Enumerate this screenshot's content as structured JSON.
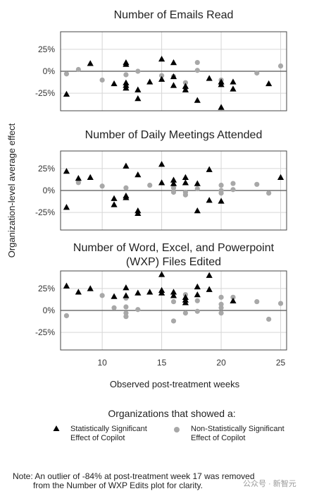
{
  "chart_data": {
    "type": "scatter",
    "xlabel": "Observed post-treatment weeks",
    "ylabel": "Organization-level average effect",
    "x_ticks": [
      10,
      15,
      20,
      25
    ],
    "xlim": [
      6.5,
      25.5
    ],
    "y_ticks": [
      {
        "value": 25,
        "label": "25%"
      },
      {
        "value": 0,
        "label": "0%"
      },
      {
        "value": -25,
        "label": "-25%"
      }
    ],
    "panels": [
      {
        "title_lines": [
          "Number of Emails Read"
        ],
        "ylim": [
          -45,
          45
        ],
        "significant": [
          [
            7,
            -26
          ],
          [
            9,
            9
          ],
          [
            11,
            -14
          ],
          [
            12,
            10
          ],
          [
            12,
            8
          ],
          [
            12,
            -13
          ],
          [
            12,
            -16
          ],
          [
            12,
            -19
          ],
          [
            13,
            -21
          ],
          [
            13,
            -31
          ],
          [
            14,
            -12
          ],
          [
            15,
            14
          ],
          [
            15,
            -9
          ],
          [
            16,
            10
          ],
          [
            16,
            -6
          ],
          [
            16,
            -16
          ],
          [
            17,
            -17
          ],
          [
            17,
            -21
          ],
          [
            18,
            -33
          ],
          [
            19,
            -8
          ],
          [
            20,
            -12
          ],
          [
            20,
            -15
          ],
          [
            20,
            -41
          ],
          [
            21,
            -12
          ],
          [
            21,
            -20
          ],
          [
            24,
            -14
          ]
        ],
        "non_significant": [
          [
            7,
            -3
          ],
          [
            8,
            2
          ],
          [
            10,
            -10
          ],
          [
            12,
            -4
          ],
          [
            13,
            0
          ],
          [
            15,
            -5
          ],
          [
            16,
            -6
          ],
          [
            17,
            -13
          ],
          [
            17,
            -20
          ],
          [
            18,
            10
          ],
          [
            18,
            1
          ],
          [
            20,
            -10
          ],
          [
            20,
            -14
          ],
          [
            23,
            -2
          ],
          [
            25,
            6
          ]
        ]
      },
      {
        "title_lines": [
          "Number of Daily Meetings Attended"
        ],
        "ylim": [
          -45,
          45
        ],
        "significant": [
          [
            7,
            22
          ],
          [
            7,
            -19
          ],
          [
            8,
            14
          ],
          [
            9,
            15
          ],
          [
            11,
            -9
          ],
          [
            11,
            -16
          ],
          [
            12,
            28
          ],
          [
            12,
            -6
          ],
          [
            12,
            -8
          ],
          [
            13,
            18
          ],
          [
            13,
            -23
          ],
          [
            13,
            -26
          ],
          [
            15,
            30
          ],
          [
            15,
            9
          ],
          [
            16,
            12
          ],
          [
            16,
            8
          ],
          [
            17,
            15
          ],
          [
            17,
            9
          ],
          [
            18,
            8
          ],
          [
            18,
            -23
          ],
          [
            19,
            24
          ],
          [
            19,
            -11
          ],
          [
            20,
            -12
          ],
          [
            25,
            15
          ]
        ],
        "non_significant": [
          [
            8,
            9
          ],
          [
            10,
            5
          ],
          [
            12,
            3
          ],
          [
            14,
            6
          ],
          [
            16,
            3
          ],
          [
            16,
            -2
          ],
          [
            17,
            -2
          ],
          [
            17,
            -5
          ],
          [
            18,
            2
          ],
          [
            20,
            6
          ],
          [
            20,
            0
          ],
          [
            20,
            -3
          ],
          [
            21,
            8
          ],
          [
            21,
            1
          ],
          [
            23,
            7
          ],
          [
            24,
            -3
          ]
        ]
      },
      {
        "title_lines": [
          "Number of Word, Excel, and Powerpoint",
          "(WXP) Files Edited"
        ],
        "ylim": [
          -45,
          45
        ],
        "significant": [
          [
            7,
            28
          ],
          [
            8,
            21
          ],
          [
            9,
            25
          ],
          [
            11,
            16
          ],
          [
            12,
            26
          ],
          [
            12,
            17
          ],
          [
            13,
            20
          ],
          [
            14,
            21
          ],
          [
            15,
            41
          ],
          [
            15,
            23
          ],
          [
            15,
            20
          ],
          [
            16,
            21
          ],
          [
            16,
            17
          ],
          [
            17,
            15
          ],
          [
            17,
            12
          ],
          [
            17,
            9
          ],
          [
            18,
            27
          ],
          [
            18,
            18
          ],
          [
            19,
            40
          ],
          [
            19,
            24
          ],
          [
            21,
            11
          ]
        ],
        "non_significant": [
          [
            7,
            -6
          ],
          [
            10,
            17
          ],
          [
            11,
            3
          ],
          [
            12,
            14
          ],
          [
            12,
            4
          ],
          [
            12,
            -3
          ],
          [
            12,
            -7
          ],
          [
            13,
            1
          ],
          [
            16,
            10
          ],
          [
            16,
            -12
          ],
          [
            17,
            -3
          ],
          [
            17,
            18
          ],
          [
            18,
            11
          ],
          [
            18,
            -1
          ],
          [
            20,
            15
          ],
          [
            20,
            7
          ],
          [
            20,
            3
          ],
          [
            20,
            -3
          ],
          [
            21,
            15
          ],
          [
            23,
            10
          ],
          [
            24,
            -10
          ],
          [
            25,
            8
          ]
        ]
      }
    ],
    "legend": {
      "title": "Organizations that showed a:",
      "significant_line1": "Statistically Significant",
      "significant_line2": "Effect of Copilot",
      "non_significant_line1": "Non-Statistically Significant",
      "non_significant_line2": "Effect of Copilot"
    },
    "colors": {
      "significant": "#000000",
      "non_significant": "#a8a8a8",
      "frame": "#444444",
      "grid": "#d6d6d6",
      "zero_line": "#555555"
    }
  },
  "note": {
    "line1": "Note: An outlier of -84% at post-treatment week 17 was removed",
    "line2": "from the Number of WXP Edits plot for clarity."
  },
  "watermark": "公众号 · 新智元"
}
